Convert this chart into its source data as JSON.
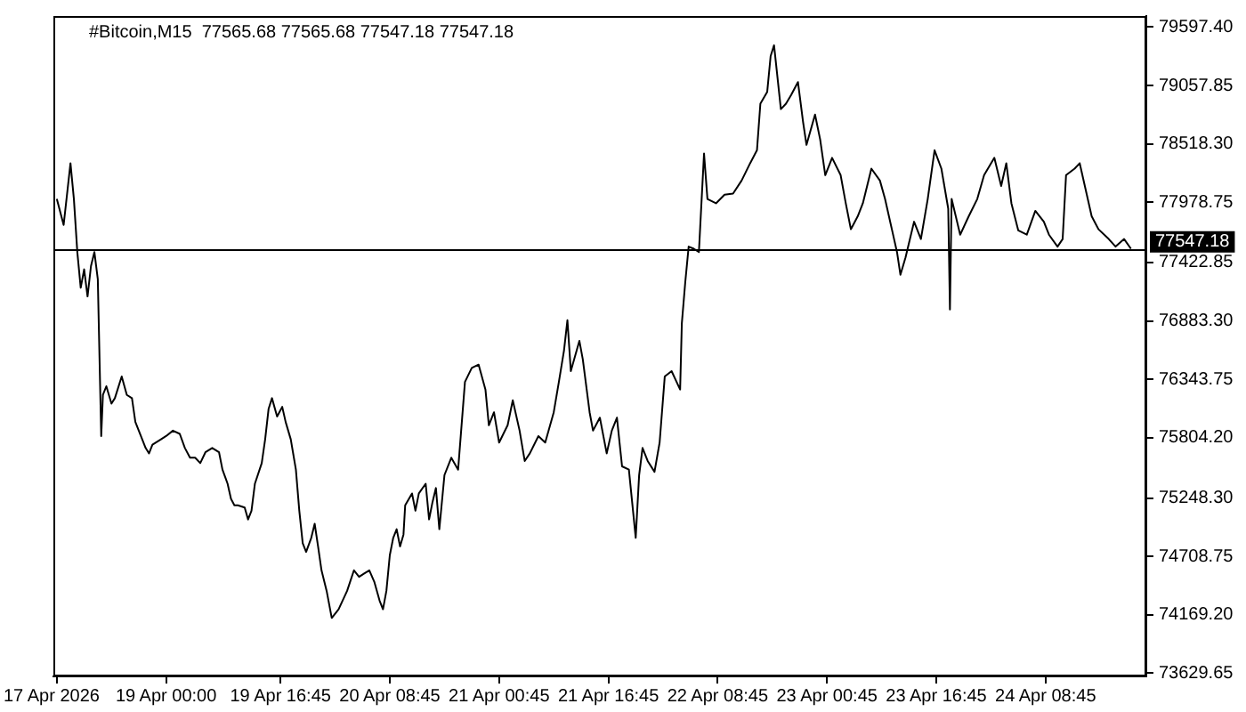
{
  "chart_data": {
    "type": "line",
    "title": "#Bitcoin,M15  77565.68 77565.68 77547.18 77547.18",
    "x": [
      "2026-04-18T08:00",
      "2026-04-18T09:00",
      "2026-04-18T10:00",
      "2026-04-18T10:30",
      "2026-04-18T11:00",
      "2026-04-18T11:30",
      "2026-04-18T12:00",
      "2026-04-18T12:30",
      "2026-04-18T13:00",
      "2026-04-18T13:30",
      "2026-04-18T14:00",
      "2026-04-18T14:30",
      "2026-04-18T14:45",
      "2026-04-18T15:15",
      "2026-04-18T16:00",
      "2026-04-18T16:30",
      "2026-04-18T17:30",
      "2026-04-18T18:15",
      "2026-04-18T19:00",
      "2026-04-18T19:30",
      "2026-04-18T20:00",
      "2026-04-18T21:00",
      "2026-04-18T21:30",
      "2026-04-18T22:00",
      "2026-04-18T23:15",
      "2026-04-19T00:00",
      "2026-04-19T01:00",
      "2026-04-19T02:00",
      "2026-04-19T02:45",
      "2026-04-19T03:30",
      "2026-04-19T04:15",
      "2026-04-19T05:00",
      "2026-04-19T05:45",
      "2026-04-19T06:45",
      "2026-04-19T07:45",
      "2026-04-19T08:15",
      "2026-04-19T09:00",
      "2026-04-19T09:30",
      "2026-04-19T10:00",
      "2026-04-19T10:30",
      "2026-04-19T11:30",
      "2026-04-19T12:00",
      "2026-04-19T12:30",
      "2026-04-19T13:00",
      "2026-04-19T14:00",
      "2026-04-19T14:30",
      "2026-04-19T15:00",
      "2026-04-19T15:30",
      "2026-04-19T16:15",
      "2026-04-19T17:00",
      "2026-04-19T17:30",
      "2026-04-19T18:15",
      "2026-04-19T19:00",
      "2026-04-19T19:30",
      "2026-04-19T20:00",
      "2026-04-19T20:30",
      "2026-04-19T21:15",
      "2026-04-19T21:45",
      "2026-04-19T22:15",
      "2026-04-19T22:45",
      "2026-04-19T23:30",
      "2026-04-20T00:15",
      "2026-04-20T01:15",
      "2026-04-20T02:30",
      "2026-04-20T03:30",
      "2026-04-20T04:15",
      "2026-04-20T05:00",
      "2026-04-20T05:45",
      "2026-04-20T06:30",
      "2026-04-20T07:15",
      "2026-04-20T07:45",
      "2026-04-20T08:15",
      "2026-04-20T08:45",
      "2026-04-20T09:15",
      "2026-04-20T09:45",
      "2026-04-20T10:15",
      "2026-04-20T10:45",
      "2026-04-20T11:00",
      "2026-04-20T12:00",
      "2026-04-20T12:30",
      "2026-04-20T13:00",
      "2026-04-20T14:00",
      "2026-04-20T14:30",
      "2026-04-20T15:00",
      "2026-04-20T15:30",
      "2026-04-20T16:00",
      "2026-04-20T16:45",
      "2026-04-20T17:45",
      "2026-04-20T18:45",
      "2026-04-20T19:45",
      "2026-04-20T20:45",
      "2026-04-20T21:45",
      "2026-04-20T22:45",
      "2026-04-20T23:15",
      "2026-04-21T00:00",
      "2026-04-21T00:45",
      "2026-04-21T02:00",
      "2026-04-21T02:45",
      "2026-04-21T03:45",
      "2026-04-21T04:30",
      "2026-04-21T05:15",
      "2026-04-21T06:30",
      "2026-04-21T07:30",
      "2026-04-21T08:45",
      "2026-04-21T09:30",
      "2026-04-21T10:15",
      "2026-04-21T10:45",
      "2026-04-21T11:15",
      "2026-04-21T12:30",
      "2026-04-21T13:00",
      "2026-04-21T14:00",
      "2026-04-21T14:30",
      "2026-04-21T15:30",
      "2026-04-21T16:30",
      "2026-04-21T17:15",
      "2026-04-21T18:00",
      "2026-04-21T18:45",
      "2026-04-21T19:45",
      "2026-04-21T20:45",
      "2026-04-21T21:15",
      "2026-04-21T21:45",
      "2026-04-21T22:30",
      "2026-04-21T23:30",
      "2026-04-22T00:15",
      "2026-04-22T01:00",
      "2026-04-22T02:00",
      "2026-04-22T03:15",
      "2026-04-22T03:30",
      "2026-04-22T04:00",
      "2026-04-22T04:30",
      "2026-04-22T05:15",
      "2026-04-22T06:00",
      "2026-04-22T06:45",
      "2026-04-22T07:15",
      "2026-04-22T08:30",
      "2026-04-22T09:45",
      "2026-04-22T11:00",
      "2026-04-22T12:15",
      "2026-04-22T13:30",
      "2026-04-22T14:30",
      "2026-04-22T15:00",
      "2026-04-22T16:00",
      "2026-04-22T16:30",
      "2026-04-22T17:00",
      "2026-04-22T18:00",
      "2026-04-22T18:45",
      "2026-04-22T19:30",
      "2026-04-22T20:30",
      "2026-04-22T21:15",
      "2026-04-22T21:45",
      "2026-04-22T23:00",
      "2026-04-22T23:45",
      "2026-04-23T00:30",
      "2026-04-23T01:30",
      "2026-04-23T02:45",
      "2026-04-23T03:30",
      "2026-04-23T04:15",
      "2026-04-23T05:15",
      "2026-04-23T06:00",
      "2026-04-23T07:15",
      "2026-04-23T08:30",
      "2026-04-23T09:15",
      "2026-04-23T10:15",
      "2026-04-23T11:00",
      "2026-04-23T11:30",
      "2026-04-23T12:15",
      "2026-04-23T13:30",
      "2026-04-23T14:30",
      "2026-04-23T15:30",
      "2026-04-23T16:30",
      "2026-04-23T17:30",
      "2026-04-23T18:30",
      "2026-04-23T18:45",
      "2026-04-23T19:00",
      "2026-04-23T20:15",
      "2026-04-23T21:30",
      "2026-04-23T22:45",
      "2026-04-23T23:45",
      "2026-04-24T01:15",
      "2026-04-24T02:15",
      "2026-04-24T03:00",
      "2026-04-24T03:45",
      "2026-04-24T04:45",
      "2026-04-24T06:00",
      "2026-04-24T07:15",
      "2026-04-24T08:30",
      "2026-04-24T09:15",
      "2026-04-24T10:30",
      "2026-04-24T11:15",
      "2026-04-24T11:45",
      "2026-04-24T13:00",
      "2026-04-24T13:45",
      "2026-04-24T14:45",
      "2026-04-24T15:30",
      "2026-04-24T16:30",
      "2026-04-24T18:00",
      "2026-04-24T19:00",
      "2026-04-24T20:15",
      "2026-04-24T21:15"
    ],
    "series": [
      {
        "color": "#000000",
        "values": [
          78010,
          77770,
          78340,
          78010,
          77520,
          77190,
          77360,
          77110,
          77390,
          77520,
          77270,
          75820,
          76200,
          76280,
          76120,
          76170,
          76370,
          76200,
          76170,
          75950,
          75870,
          75710,
          75660,
          75740,
          75790,
          75820,
          75870,
          75840,
          75710,
          75620,
          75620,
          75570,
          75670,
          75710,
          75670,
          75510,
          75380,
          75240,
          75180,
          75180,
          75160,
          75050,
          75130,
          75380,
          75570,
          75790,
          76070,
          76170,
          76000,
          76090,
          75950,
          75790,
          75510,
          75130,
          74830,
          74750,
          74880,
          75010,
          74800,
          74580,
          74390,
          74140,
          74220,
          74390,
          74580,
          74520,
          74550,
          74580,
          74470,
          74300,
          74220,
          74390,
          74720,
          74880,
          74960,
          74800,
          74910,
          75180,
          75290,
          75130,
          75290,
          75380,
          75050,
          75210,
          75340,
          74960,
          75460,
          75620,
          75510,
          76320,
          76450,
          76480,
          76250,
          75920,
          76040,
          75760,
          75920,
          76150,
          75870,
          75590,
          75660,
          75820,
          75760,
          76040,
          76320,
          76610,
          76890,
          76420,
          76700,
          76530,
          76040,
          75870,
          75990,
          75660,
          75870,
          75990,
          75540,
          75510,
          74880,
          75460,
          75710,
          75590,
          75490,
          75760,
          76370,
          76420,
          76250,
          76860,
          77240,
          77570,
          77550,
          77520,
          78430,
          78010,
          77970,
          78050,
          78060,
          78180,
          78340,
          78460,
          78890,
          79000,
          79330,
          79430,
          78840,
          78890,
          78970,
          79090,
          78720,
          78510,
          78790,
          78560,
          78230,
          78390,
          78230,
          77970,
          77730,
          77850,
          77970,
          78290,
          78180,
          78010,
          77730,
          77520,
          77310,
          77470,
          77800,
          77640,
          78010,
          78460,
          78290,
          77920,
          76990,
          78010,
          77680,
          77850,
          78010,
          78230,
          78390,
          78130,
          78340,
          77970,
          77720,
          77680,
          77900,
          77800,
          77680,
          77570,
          77640,
          78230,
          78290,
          78340,
          78060,
          77850,
          77730,
          77640,
          77570,
          77640,
          77550
        ]
      }
    ],
    "xlim": [
      "2026-04-18T07:30",
      "2026-04-24T23:30"
    ],
    "annotations": [
      "17 Apr 2026"
    ],
    "xticks": [
      {
        "value": "2026-04-18T08:00",
        "label": null
      },
      {
        "value": "2026-04-19T00:00",
        "label": "19 Apr 00:00"
      },
      {
        "value": "2026-04-19T16:45",
        "label": "19 Apr 16:45"
      },
      {
        "value": "2026-04-20T08:45",
        "label": "20 Apr 08:45"
      },
      {
        "value": "2026-04-21T00:45",
        "label": "21 Apr 00:45"
      },
      {
        "value": "2026-04-21T16:45",
        "label": "21 Apr 16:45"
      },
      {
        "value": "2026-04-22T08:45",
        "label": "22 Apr 08:45"
      },
      {
        "value": "2026-04-23T00:45",
        "label": "23 Apr 00:45"
      },
      {
        "value": "2026-04-23T16:45",
        "label": "23 Apr 16:45"
      },
      {
        "value": "2026-04-24T08:45",
        "label": "24 Apr 08:45"
      }
    ],
    "ylim": [
      73600,
      79700
    ],
    "yticks": [
      {
        "value": 79597.4,
        "label": "79597.40"
      },
      {
        "value": 79057.85,
        "label": "79057.85"
      },
      {
        "value": 78518.3,
        "label": "78518.30"
      },
      {
        "value": 77978.75,
        "label": "77978.75"
      },
      {
        "value": 77422.85,
        "label": "77422.85"
      },
      {
        "value": 76883.3,
        "label": "76883.30"
      },
      {
        "value": 76343.75,
        "label": "76343.75"
      },
      {
        "value": 75804.2,
        "label": "75804.20"
      },
      {
        "value": 75248.3,
        "label": "75248.30"
      },
      {
        "value": 74708.75,
        "label": "74708.75"
      },
      {
        "value": 74169.2,
        "label": "74169.20"
      },
      {
        "value": 73629.65,
        "label": "73629.65"
      }
    ],
    "ref_lines": [
      {
        "axis": "y",
        "value": 77547.18,
        "label": "77547.18",
        "color": "#000000"
      }
    ],
    "grid": false,
    "marker": "none",
    "line_style": "solid"
  }
}
